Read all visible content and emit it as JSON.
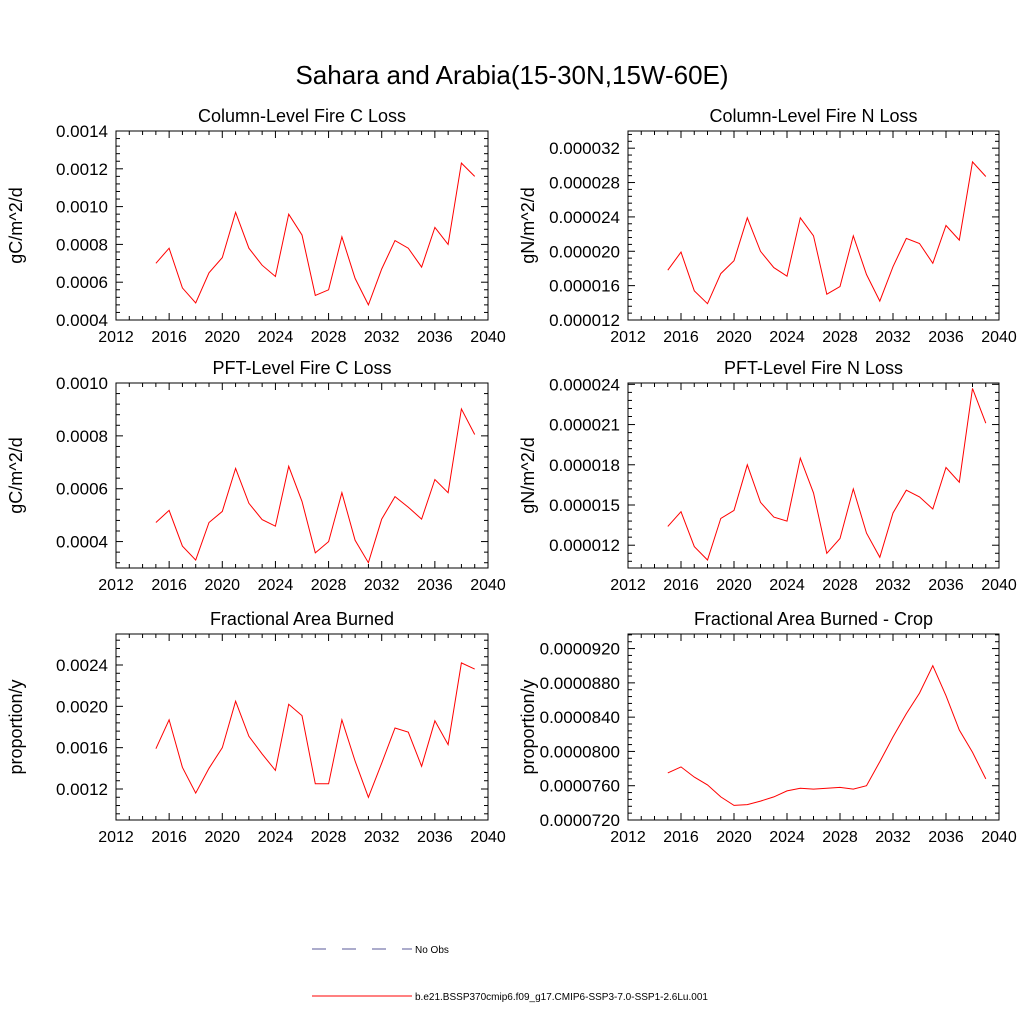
{
  "figure": {
    "title": "Sahara and Arabia(15-30N,15W-60E)"
  },
  "legend": {
    "entries": [
      {
        "label": "No Obs",
        "color": "#5a5a9a",
        "style": "dashed"
      },
      {
        "label": "b.e21.BSSP370cmip6.f09_g17.CMIP6-SSP3-7.0-SSP1-2.6Lu.001",
        "color": "#ff0000",
        "style": "solid"
      }
    ]
  },
  "chart_data": [
    {
      "type": "line",
      "title": "Column-Level Fire C Loss",
      "ylabel": "gC/m^2/d",
      "xlim": [
        2012,
        2040
      ],
      "xticks": [
        "2012",
        "2016",
        "2020",
        "2024",
        "2028",
        "2032",
        "2036",
        "2040"
      ],
      "ylim": [
        0.0004,
        0.0014
      ],
      "yticks": [
        "0.0004",
        "0.0006",
        "0.0008",
        "0.0010",
        "0.0012",
        "0.0014"
      ],
      "x": [
        2015,
        2016,
        2017,
        2018,
        2019,
        2020,
        2021,
        2022,
        2023,
        2024,
        2025,
        2026,
        2027,
        2028,
        2029,
        2030,
        2031,
        2032,
        2033,
        2034,
        2035,
        2036,
        2037,
        2038,
        2039
      ],
      "series": [
        {
          "color": "#ff0000",
          "values": [
            0.0007,
            0.00078,
            0.00057,
            0.00049,
            0.00065,
            0.00073,
            0.00097,
            0.00078,
            0.00069,
            0.00063,
            0.00096,
            0.00085,
            0.00053,
            0.00056,
            0.00084,
            0.00062,
            0.00048,
            0.00067,
            0.00082,
            0.00078,
            0.00068,
            0.00089,
            0.0008,
            0.00123,
            0.00116
          ]
        }
      ]
    },
    {
      "type": "line",
      "title": "Column-Level Fire N Loss",
      "ylabel": "gN/m^2/d",
      "xlim": [
        2012,
        2040
      ],
      "xticks": [
        "2012",
        "2016",
        "2020",
        "2024",
        "2028",
        "2032",
        "2036",
        "2040"
      ],
      "ylim": [
        1.2e-05,
        3.4e-05
      ],
      "yticks": [
        "0.000012",
        "0.000016",
        "0.000020",
        "0.000024",
        "0.000028",
        "0.000032"
      ],
      "x": [
        2015,
        2016,
        2017,
        2018,
        2019,
        2020,
        2021,
        2022,
        2023,
        2024,
        2025,
        2026,
        2027,
        2028,
        2029,
        2030,
        2031,
        2032,
        2033,
        2034,
        2035,
        2036,
        2037,
        2038,
        2039
      ],
      "series": [
        {
          "color": "#ff0000",
          "values": [
            1.78e-05,
            1.99e-05,
            1.54e-05,
            1.39e-05,
            1.74e-05,
            1.89e-05,
            2.39e-05,
            2e-05,
            1.81e-05,
            1.71e-05,
            2.39e-05,
            2.18e-05,
            1.5e-05,
            1.59e-05,
            2.18e-05,
            1.73e-05,
            1.42e-05,
            1.82e-05,
            2.15e-05,
            2.09e-05,
            1.86e-05,
            2.3e-05,
            2.13e-05,
            3.04e-05,
            2.87e-05
          ]
        }
      ]
    },
    {
      "type": "line",
      "title": "PFT-Level Fire C Loss",
      "ylabel": "gC/m^2/d",
      "xlim": [
        2012,
        2040
      ],
      "xticks": [
        "2012",
        "2016",
        "2020",
        "2024",
        "2028",
        "2032",
        "2036",
        "2040"
      ],
      "ylim": [
        0.0003,
        0.001
      ],
      "yticks": [
        "0.0004",
        "0.0006",
        "0.0008",
        "0.0010"
      ],
      "x": [
        2015,
        2016,
        2017,
        2018,
        2019,
        2020,
        2021,
        2022,
        2023,
        2024,
        2025,
        2026,
        2027,
        2028,
        2029,
        2030,
        2031,
        2032,
        2033,
        2034,
        2035,
        2036,
        2037,
        2038,
        2039
      ],
      "series": [
        {
          "color": "#ff0000",
          "values": [
            0.000472,
            0.000518,
            0.000383,
            0.00033,
            0.000472,
            0.000514,
            0.000677,
            0.000545,
            0.000483,
            0.000458,
            0.000685,
            0.000552,
            0.000357,
            0.0004,
            0.000585,
            0.000405,
            0.00032,
            0.000485,
            0.00057,
            0.00053,
            0.000485,
            0.000635,
            0.000585,
            0.000902,
            0.000805
          ]
        }
      ]
    },
    {
      "type": "line",
      "title": "PFT-Level Fire N Loss",
      "ylabel": "gN/m^2/d",
      "xlim": [
        2012,
        2040
      ],
      "xticks": [
        "2012",
        "2016",
        "2020",
        "2024",
        "2028",
        "2032",
        "2036",
        "2040"
      ],
      "ylim": [
        1.03e-05,
        2.41e-05
      ],
      "yticks": [
        "0.000012",
        "0.000015",
        "0.000018",
        "0.000021",
        "0.000024"
      ],
      "x": [
        2015,
        2016,
        2017,
        2018,
        2019,
        2020,
        2021,
        2022,
        2023,
        2024,
        2025,
        2026,
        2027,
        2028,
        2029,
        2030,
        2031,
        2032,
        2033,
        2034,
        2035,
        2036,
        2037,
        2038,
        2039
      ],
      "series": [
        {
          "color": "#ff0000",
          "values": [
            1.34e-05,
            1.45e-05,
            1.19e-05,
            1.09e-05,
            1.4e-05,
            1.46e-05,
            1.8e-05,
            1.52e-05,
            1.41e-05,
            1.38e-05,
            1.85e-05,
            1.59e-05,
            1.14e-05,
            1.25e-05,
            1.62e-05,
            1.29e-05,
            1.11e-05,
            1.44e-05,
            1.61e-05,
            1.56e-05,
            1.47e-05,
            1.78e-05,
            1.67e-05,
            2.37e-05,
            2.11e-05
          ]
        }
      ]
    },
    {
      "type": "line",
      "title": "Fractional Area Burned",
      "ylabel": "proportion/y",
      "xlim": [
        2012,
        2040
      ],
      "xticks": [
        "2012",
        "2016",
        "2020",
        "2024",
        "2028",
        "2032",
        "2036",
        "2040"
      ],
      "ylim": [
        0.0009,
        0.0027
      ],
      "yticks": [
        "0.0012",
        "0.0016",
        "0.0020",
        "0.0024"
      ],
      "x": [
        2015,
        2016,
        2017,
        2018,
        2019,
        2020,
        2021,
        2022,
        2023,
        2024,
        2025,
        2026,
        2027,
        2028,
        2029,
        2030,
        2031,
        2032,
        2033,
        2034,
        2035,
        2036,
        2037,
        2038,
        2039
      ],
      "series": [
        {
          "color": "#ff0000",
          "values": [
            0.00159,
            0.00187,
            0.00141,
            0.00116,
            0.0014,
            0.0016,
            0.00205,
            0.00171,
            0.00154,
            0.00138,
            0.00202,
            0.00191,
            0.00125,
            0.00125,
            0.00187,
            0.00147,
            0.00112,
            0.00145,
            0.00179,
            0.00175,
            0.00142,
            0.00186,
            0.00163,
            0.00242,
            0.00236
          ]
        }
      ]
    },
    {
      "type": "line",
      "title": "Fractional Area Burned - Crop",
      "ylabel": "proportion/y",
      "xlim": [
        2012,
        2040
      ],
      "xticks": [
        "2012",
        "2016",
        "2020",
        "2024",
        "2028",
        "2032",
        "2036",
        "2040"
      ],
      "ylim": [
        7.2e-05,
        9.37e-05
      ],
      "yticks": [
        "0.0000720",
        "0.0000760",
        "0.0000800",
        "0.0000840",
        "0.0000880",
        "0.0000920"
      ],
      "x": [
        2015,
        2016,
        2017,
        2018,
        2019,
        2020,
        2021,
        2022,
        2023,
        2024,
        2025,
        2026,
        2027,
        2028,
        2029,
        2030,
        2031,
        2032,
        2033,
        2034,
        2035,
        2036,
        2037,
        2038,
        2039
      ],
      "series": [
        {
          "color": "#ff0000",
          "values": [
            7.75e-05,
            7.82e-05,
            7.7e-05,
            7.61e-05,
            7.47e-05,
            7.37e-05,
            7.38e-05,
            7.42e-05,
            7.47e-05,
            7.54e-05,
            7.57e-05,
            7.56e-05,
            7.57e-05,
            7.58e-05,
            7.56e-05,
            7.6e-05,
            7.88e-05,
            8.17e-05,
            8.44e-05,
            8.68e-05,
            9e-05,
            8.65e-05,
            8.25e-05,
            7.99e-05,
            7.68e-05
          ]
        }
      ]
    }
  ]
}
